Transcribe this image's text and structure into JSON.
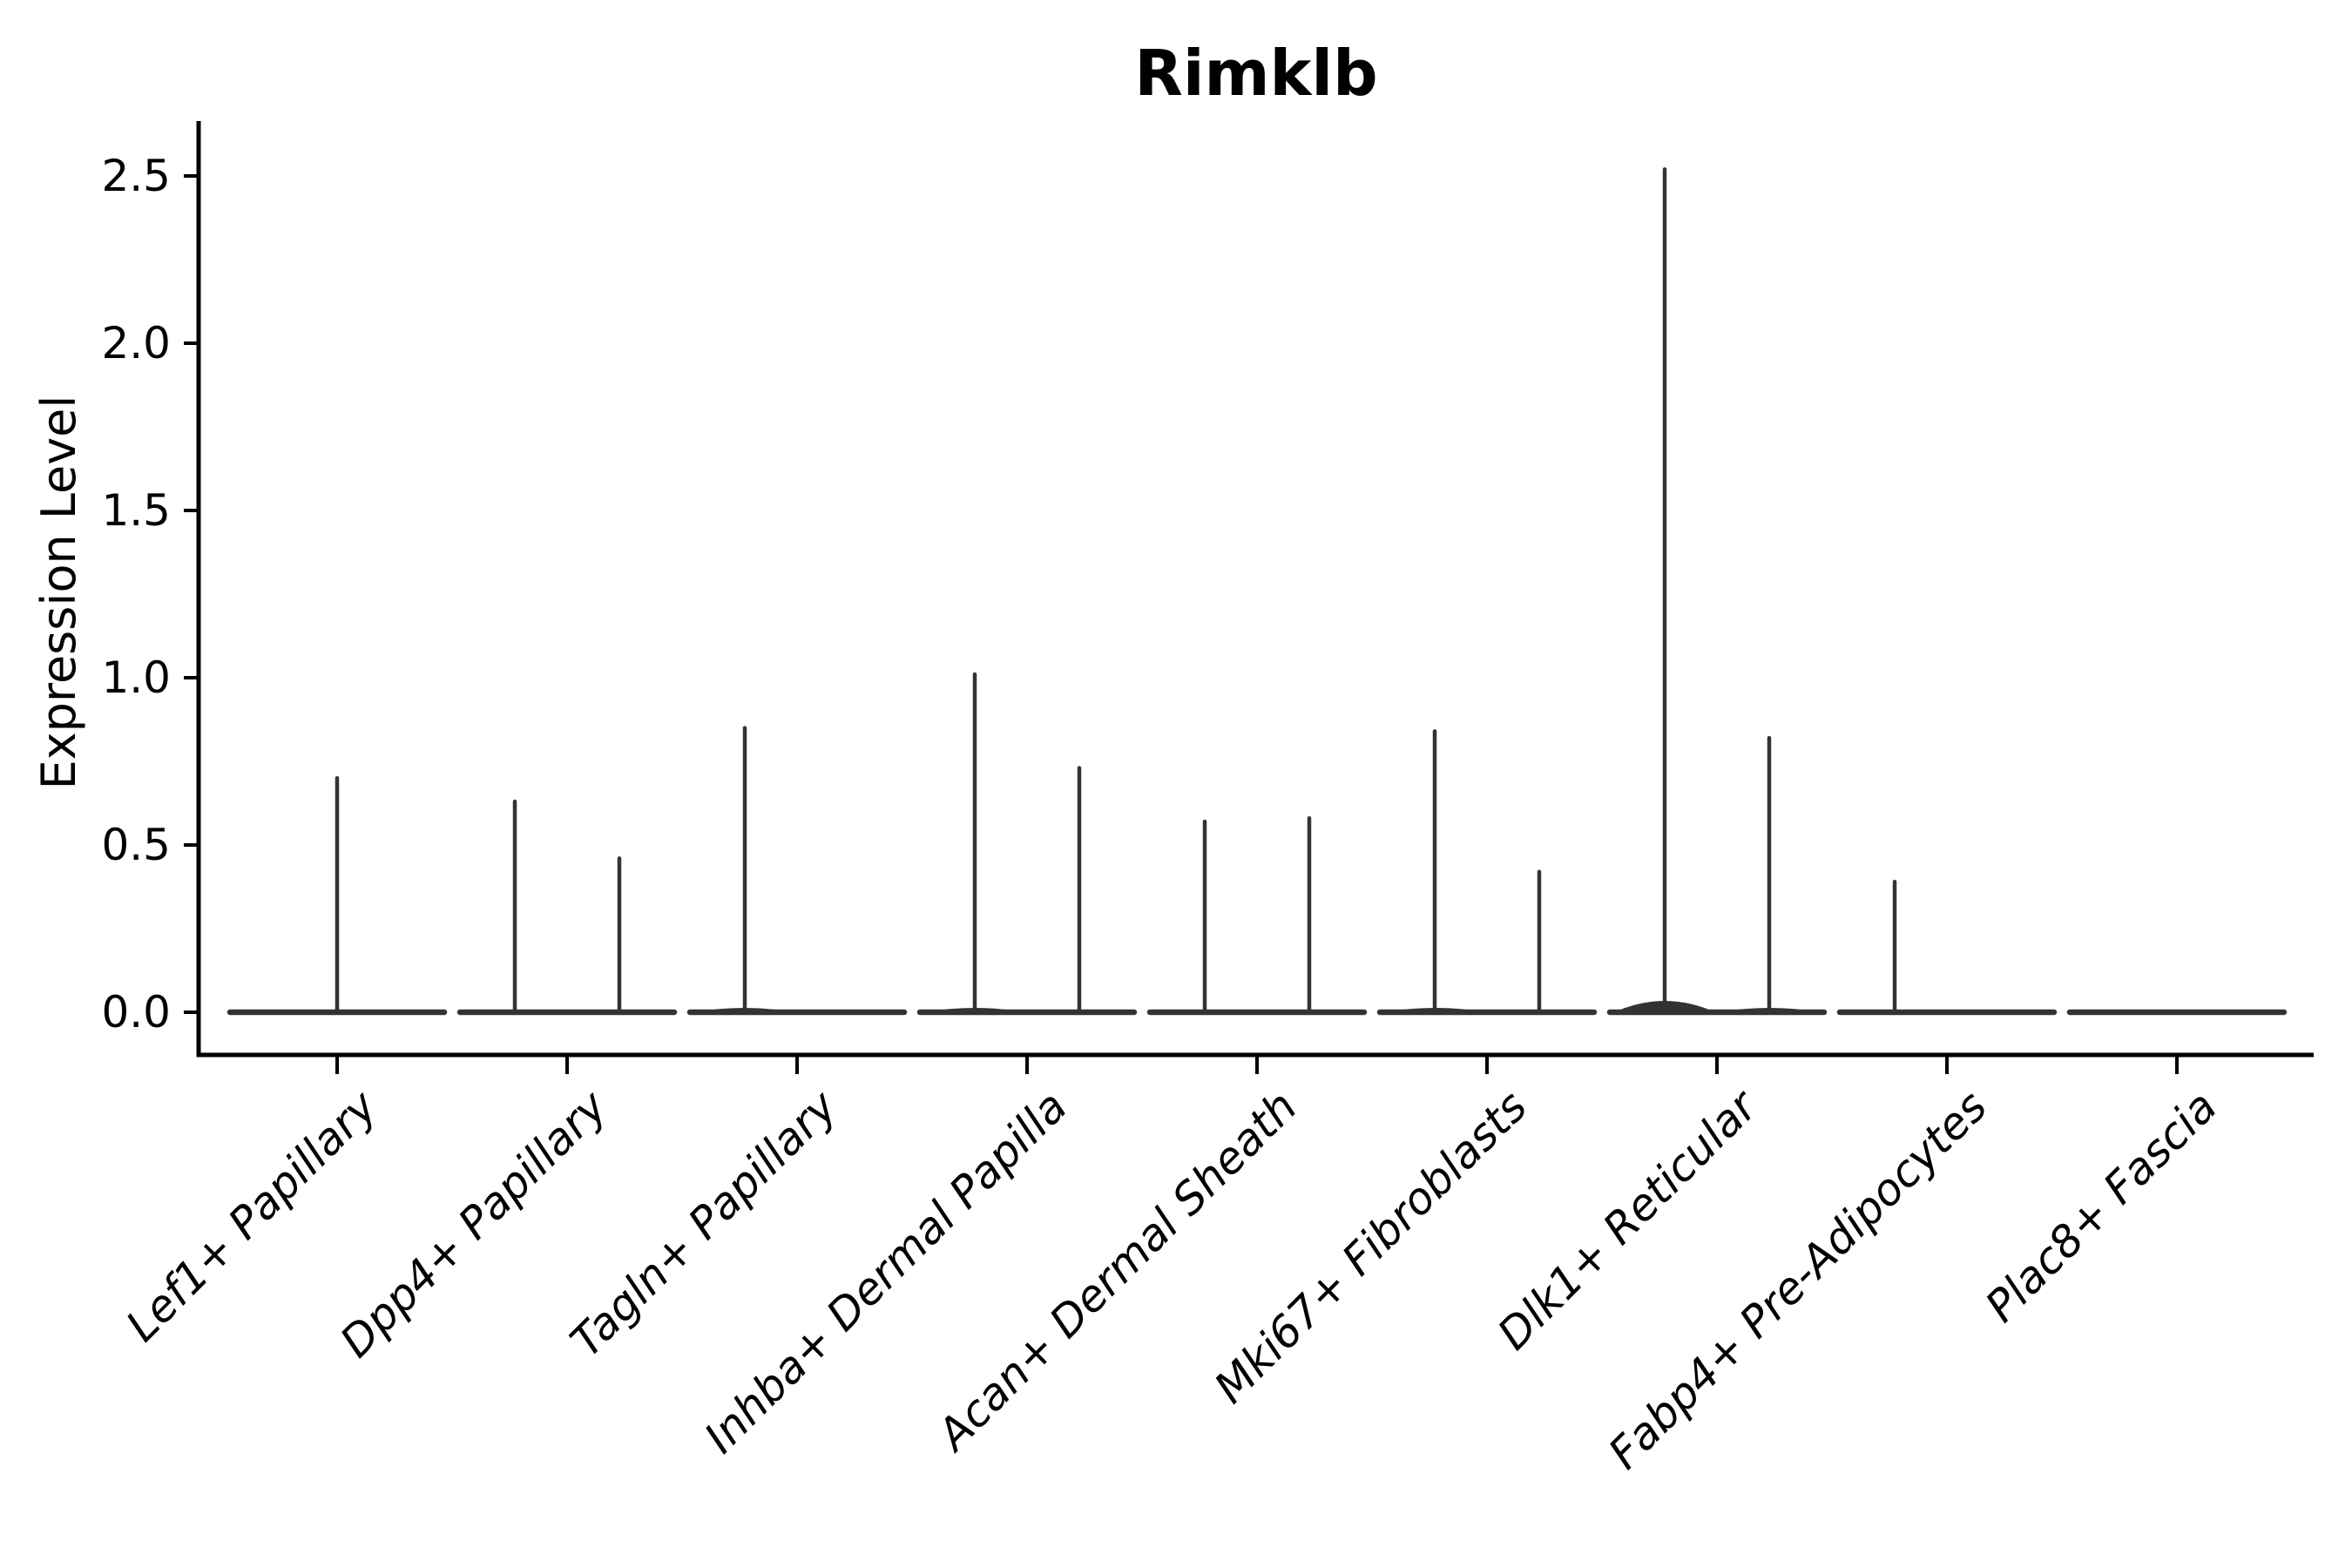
{
  "title": "Rimklb",
  "chart_data": {
    "type": "violin",
    "title": "Rimklb",
    "ylabel": "Expression Level",
    "xlabel": "",
    "ylim": [
      0,
      2.6
    ],
    "grid": false,
    "legend": "none",
    "background": "#ffffff",
    "violin_color": "#333333",
    "axis_color": "#000000",
    "text_color": "#000000",
    "yticks": [
      {
        "label": "0.0",
        "value": 0.0
      },
      {
        "label": "0.5",
        "value": 0.5
      },
      {
        "label": "1.0",
        "value": 1.0
      },
      {
        "label": "1.5",
        "value": 1.5
      },
      {
        "label": "2.0",
        "value": 2.0
      },
      {
        "label": "2.5",
        "value": 2.5
      }
    ],
    "categories": [
      "Lef1+ Papillary",
      "Dpp4+ Papillary",
      "Tagln+ Papillary",
      "Inhba+ Dermal Papilla",
      "Acan+ Dermal Sheath",
      "Mki67+ Fibroblasts",
      "Dlk1+ Reticular",
      "Fabp4+ Pre-Adipocytes",
      "Plac8+ Fascia"
    ],
    "violins": [
      {
        "category": "Lef1+ Papillary",
        "spikes": [
          {
            "pos": "center",
            "max": 0.7
          }
        ]
      },
      {
        "category": "Dpp4+ Papillary",
        "spikes": [
          {
            "pos": "left",
            "max": 0.63
          },
          {
            "pos": "right",
            "max": 0.46
          }
        ]
      },
      {
        "category": "Tagln+ Papillary",
        "spikes": [
          {
            "pos": "left",
            "max": 0.85
          }
        ]
      },
      {
        "category": "Inhba+ Dermal Papilla",
        "spikes": [
          {
            "pos": "left",
            "max": 1.01
          },
          {
            "pos": "right",
            "max": 0.73
          }
        ]
      },
      {
        "category": "Acan+ Dermal Sheath",
        "spikes": [
          {
            "pos": "left",
            "max": 0.57
          },
          {
            "pos": "right",
            "max": 0.58
          }
        ]
      },
      {
        "category": "Mki67+ Fibroblasts",
        "spikes": [
          {
            "pos": "left",
            "max": 0.84
          },
          {
            "pos": "right",
            "max": 0.42
          }
        ]
      },
      {
        "category": "Dlk1+ Reticular",
        "spikes": [
          {
            "pos": "left",
            "max": 2.52
          },
          {
            "pos": "right",
            "max": 0.82
          }
        ]
      },
      {
        "category": "Fabp4+ Pre-Adipocytes",
        "spikes": [
          {
            "pos": "left",
            "max": 0.39
          }
        ]
      },
      {
        "category": "Plac8+ Fascia",
        "spikes": []
      }
    ]
  }
}
